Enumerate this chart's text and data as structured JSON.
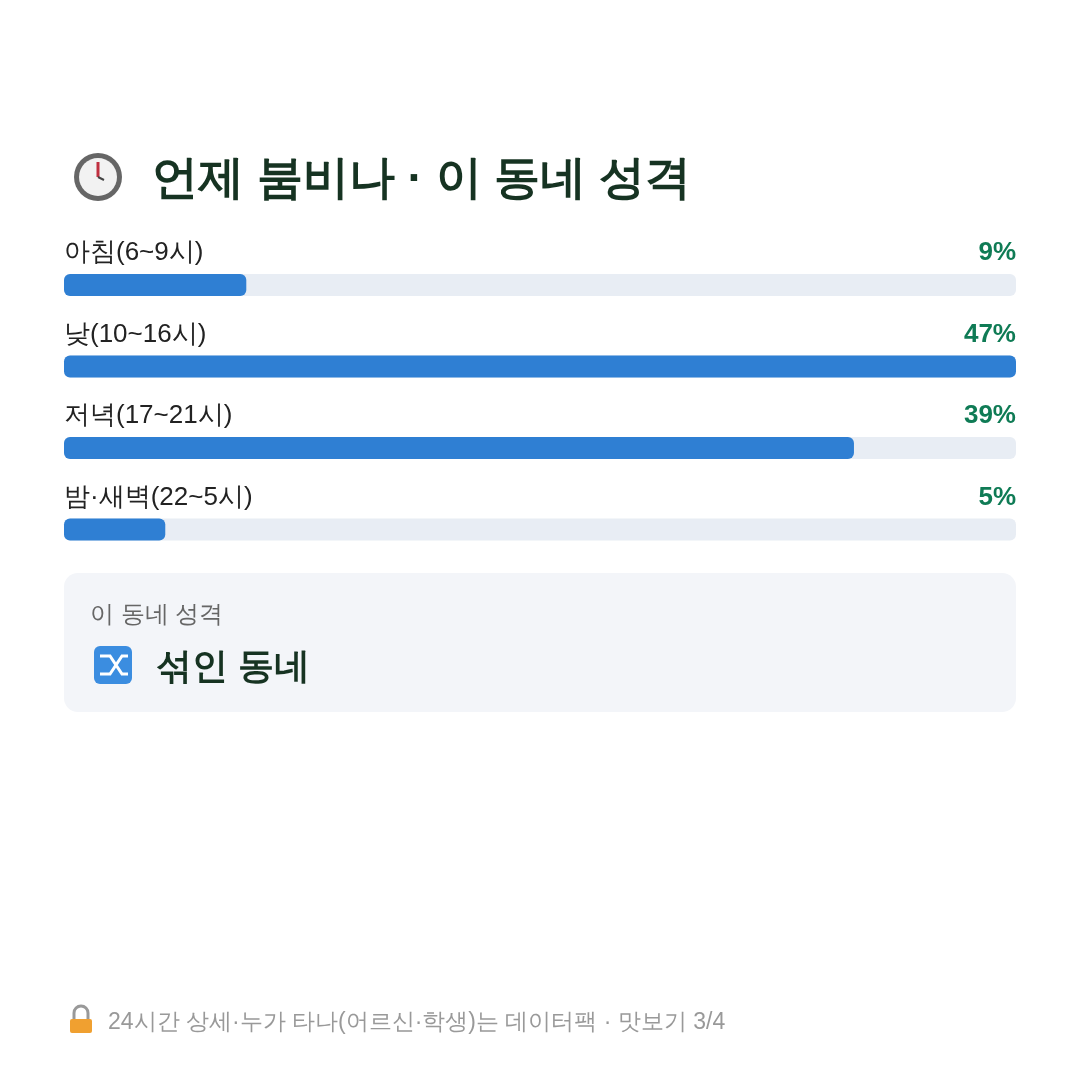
{
  "chart_data": {
    "type": "bar",
    "orientation": "horizontal",
    "title": "언제 붐비나 · 이 동네 성격",
    "categories": [
      "아침(6~9시)",
      "낮(10~16시)",
      "저녁(17~21시)",
      "밤·새벽(22~5시)"
    ],
    "values": [
      9,
      47,
      39,
      5
    ],
    "value_labels": [
      "9%",
      "47%",
      "39%",
      "5%"
    ],
    "color": "#2f7fd3",
    "annotations": [
      "이 동네 성격",
      "섞인 동네",
      "24시간 상세·누가 타나(어르신·학생)는 데이터팩 · 맛보기 3/4"
    ]
  }
}
